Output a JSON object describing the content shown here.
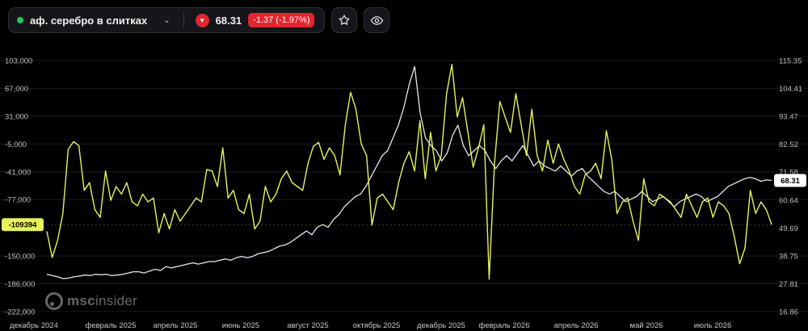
{
  "header": {
    "instrument": "аф. серебро в слитках",
    "price": "68.31",
    "change": "-1.37 (-1.97%)",
    "icons": {
      "status": "status-dot",
      "dropdown": "chevron-down-icon",
      "direction": "arrow-down-icon",
      "favorite": "star-icon",
      "view": "eye-icon"
    }
  },
  "watermark": {
    "brand": "msc",
    "brand_rest": "insider"
  },
  "colors": {
    "background": "#000000",
    "yellow_series": "#e6f35a",
    "white_series": "#e6e6ee",
    "down": "#e0262f",
    "status": "#22c55e"
  },
  "chart_data": {
    "type": "line",
    "x_ticks": [
      "декабрь 2024",
      "февраль 2025",
      "апрель 2025",
      "июнь 2025",
      "август 2025",
      "октябрь 2025",
      "декабрь 2025",
      "февраль 2026",
      "апрель 2026",
      "май 2026",
      "июль 2026"
    ],
    "left_axis": {
      "ticks": [
        "103,000",
        "67,000",
        "31,000",
        "-5,000",
        "-41,000",
        "-77,000",
        "-150,000",
        "-186,000",
        "-222,000"
      ],
      "ylim": [
        -222000,
        103000
      ]
    },
    "right_axis": {
      "ticks": [
        "115.35",
        "104.41",
        "93.47",
        "82.52",
        "71.58",
        "60.64",
        "49.69",
        "38.75",
        "27.81",
        "16.86"
      ],
      "ylim": [
        16.86,
        115.35
      ]
    },
    "left_badge": "-109394",
    "right_badge": "68.31",
    "series": [
      {
        "axis": "left",
        "values": [
          -118000,
          -152000,
          -130000,
          -95000,
          -12000,
          -2000,
          -7000,
          -65000,
          -55000,
          -90000,
          -100000,
          -40000,
          -78000,
          -60000,
          -70000,
          -55000,
          -80000,
          -85000,
          -70000,
          -80000,
          -75000,
          -120000,
          -95000,
          -115000,
          -90000,
          -105000,
          -95000,
          -85000,
          -75000,
          -80000,
          -38000,
          -40000,
          -60000,
          -10000,
          -75000,
          -65000,
          -90000,
          -95000,
          -70000,
          -115000,
          -105000,
          -60000,
          -80000,
          -70000,
          -50000,
          -40000,
          -55000,
          -60000,
          -65000,
          -30000,
          -8000,
          -3000,
          -25000,
          -10000,
          -20000,
          -45000,
          20000,
          62000,
          40000,
          -5000,
          -20000,
          -110000,
          -75000,
          -70000,
          -80000,
          -90000,
          -55000,
          -30000,
          -15000,
          -40000,
          25000,
          -50000,
          10000,
          -40000,
          -20000,
          60000,
          98000,
          30000,
          55000,
          10000,
          -35000,
          -10000,
          20000,
          -180000,
          -30000,
          50000,
          30000,
          10000,
          60000,
          20000,
          -20000,
          40000,
          -20000,
          -40000,
          0,
          -30000,
          -5000,
          -25000,
          -40000,
          -60000,
          -70000,
          -45000,
          -40000,
          -30000,
          -50000,
          12000,
          -25000,
          -95000,
          -80000,
          -75000,
          -105000,
          -130000,
          -50000,
          -80000,
          -85000,
          -70000,
          -75000,
          -80000,
          -90000,
          -100000,
          -70000,
          -85000,
          -100000,
          -80000,
          -75000,
          -100000,
          -80000,
          -85000,
          -95000,
          -125000,
          -160000,
          -140000,
          -65000,
          -95000,
          -80000,
          -90000,
          -109394
        ]
      },
      {
        "axis": "right",
        "values": [
          31.5,
          31.0,
          30.5,
          29.8,
          30.0,
          30.5,
          30.8,
          31.2,
          31.0,
          31.5,
          31.3,
          31.5,
          31.0,
          31.2,
          31.5,
          32.0,
          32.5,
          32.5,
          32.0,
          32.8,
          33.5,
          33.0,
          34.5,
          34.0,
          34.5,
          35.0,
          35.5,
          36.0,
          35.5,
          36.0,
          36.5,
          36.5,
          37.0,
          37.5,
          37.0,
          38.0,
          38.5,
          38.0,
          38.5,
          39.5,
          40.0,
          40.5,
          41.5,
          42.5,
          43.0,
          44.0,
          45.5,
          47.0,
          48.5,
          47.0,
          50.0,
          51.0,
          50.0,
          53.0,
          55.0,
          58.0,
          60.0,
          62.0,
          63.0,
          66.0,
          70.0,
          74.0,
          78.0,
          80.0,
          85.0,
          90.0,
          97.0,
          106.0,
          113.0,
          95.0,
          85.0,
          82.0,
          80.0,
          76.0,
          79.0,
          86.0,
          90.0,
          82.0,
          78.0,
          80.0,
          82.0,
          80.0,
          76.0,
          73.0,
          76.0,
          78.0,
          76.0,
          79.0,
          82.0,
          78.0,
          74.0,
          76.0,
          74.0,
          73.0,
          72.0,
          74.0,
          72.0,
          70.0,
          72.0,
          73.0,
          70.0,
          68.0,
          66.0,
          64.0,
          63.0,
          64.0,
          62.0,
          60.0,
          61.0,
          62.0,
          64.0,
          62.0,
          60.0,
          61.0,
          62.0,
          60.0,
          58.0,
          60.0,
          61.0,
          62.0,
          63.0,
          62.0,
          60.0,
          61.0,
          62.0,
          64.0,
          66.0,
          67.0,
          68.0,
          69.0,
          69.5,
          69.0,
          68.0,
          68.5,
          68.31
        ]
      }
    ]
  }
}
